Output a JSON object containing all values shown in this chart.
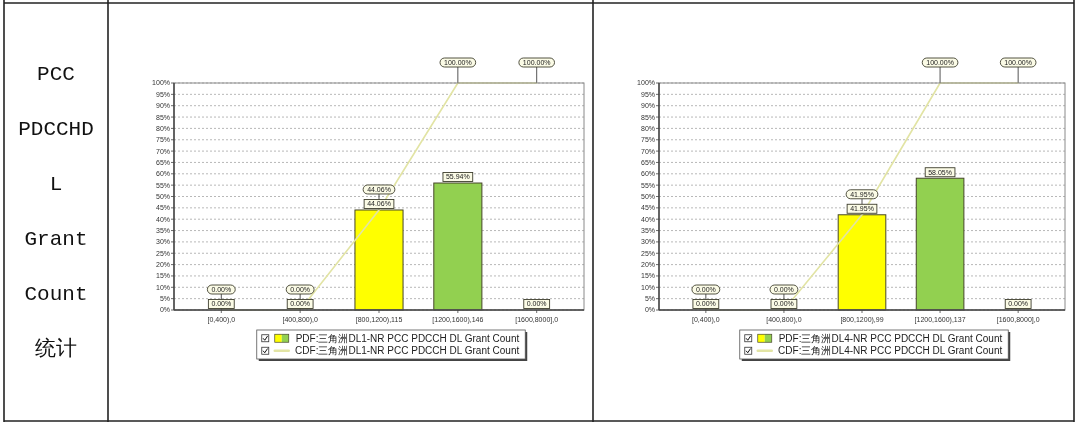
{
  "chart_data": [
    {
      "type": "other",
      "title": "PCC PDCCHDL Grant Count 统计"
    },
    {
      "type": "bar",
      "categories": [
        "[0,400),0",
        "[400,800),0",
        "[800,1200),115",
        "[1200,1600),146",
        "[1600,8000],0"
      ],
      "series": [
        {
          "name": "PDF:三角洲DL1-NR PCC PDCCH DL Grant Count",
          "type": "bar",
          "colors": [
            "#ffff00",
            "#ffff00",
            "#ffff00",
            "#92d050",
            "#92d050"
          ],
          "values": [
            0,
            0,
            44.06,
            55.94,
            0
          ],
          "value_labels": [
            "0.00%",
            "0.00%",
            "44.06%",
            "55.94%",
            "0.00%"
          ]
        },
        {
          "name": "CDF:三角洲DL1-NR PCC PDCCH DL Grant Count",
          "type": "line",
          "color": "#e2e4a4",
          "values": [
            0,
            0,
            44.06,
            100,
            100
          ],
          "value_labels": [
            "0.00%",
            "0.00%",
            "44.06%",
            "100.00%",
            "100.00%"
          ]
        }
      ],
      "ylim": [
        0,
        100
      ],
      "yticks": [
        {
          "value": 0,
          "label": "0%"
        },
        {
          "value": 5,
          "label": "5%"
        },
        {
          "value": 10,
          "label": "10%"
        },
        {
          "value": 15,
          "label": "15%"
        },
        {
          "value": 20,
          "label": "20%"
        },
        {
          "value": 25,
          "label": "25%"
        },
        {
          "value": 30,
          "label": "30%"
        },
        {
          "value": 35,
          "label": "35%"
        },
        {
          "value": 40,
          "label": "40%"
        },
        {
          "value": 45,
          "label": "45%"
        },
        {
          "value": 50,
          "label": "50%"
        },
        {
          "value": 55,
          "label": "55%"
        },
        {
          "value": 60,
          "label": "60%"
        },
        {
          "value": 65,
          "label": "65%"
        },
        {
          "value": 70,
          "label": "70%"
        },
        {
          "value": 75,
          "label": "75%"
        },
        {
          "value": 80,
          "label": "80%"
        },
        {
          "value": 85,
          "label": "85%"
        },
        {
          "value": 90,
          "label": "90%"
        },
        {
          "value": 95,
          "label": "95%"
        },
        {
          "value": 100,
          "label": "100%"
        }
      ],
      "grid": "y",
      "legend": "bottom",
      "line_style": "solid"
    },
    {
      "type": "bar",
      "categories": [
        "[0,400),0",
        "[400,800),0",
        "[800,1200),99",
        "[1200,1600),137",
        "[1600,8000],0"
      ],
      "series": [
        {
          "name": "PDF:三角洲DL4-NR PCC PDCCH DL Grant Count",
          "type": "bar",
          "colors": [
            "#ffff00",
            "#ffff00",
            "#ffff00",
            "#92d050",
            "#92d050"
          ],
          "values": [
            0,
            0,
            41.95,
            58.05,
            0
          ],
          "value_labels": [
            "0.00%",
            "0.00%",
            "41.95%",
            "58.05%",
            "0.00%"
          ]
        },
        {
          "name": "CDF:三角洲DL4-NR PCC PDCCH DL Grant Count",
          "type": "line",
          "color": "#e2e4a4",
          "values": [
            0,
            0,
            41.95,
            100,
            100
          ],
          "value_labels": [
            "0.00%",
            "0.00%",
            "41.95%",
            "100.00%",
            "100.00%"
          ]
        }
      ],
      "ylim": [
        0,
        100
      ],
      "yticks": [
        {
          "value": 0,
          "label": "0%"
        },
        {
          "value": 5,
          "label": "5%"
        },
        {
          "value": 10,
          "label": "10%"
        },
        {
          "value": 15,
          "label": "15%"
        },
        {
          "value": 20,
          "label": "20%"
        },
        {
          "value": 25,
          "label": "25%"
        },
        {
          "value": 30,
          "label": "30%"
        },
        {
          "value": 35,
          "label": "35%"
        },
        {
          "value": 40,
          "label": "40%"
        },
        {
          "value": 45,
          "label": "45%"
        },
        {
          "value": 50,
          "label": "50%"
        },
        {
          "value": 55,
          "label": "55%"
        },
        {
          "value": 60,
          "label": "60%"
        },
        {
          "value": 65,
          "label": "65%"
        },
        {
          "value": 70,
          "label": "70%"
        },
        {
          "value": 75,
          "label": "75%"
        },
        {
          "value": 80,
          "label": "80%"
        },
        {
          "value": 85,
          "label": "85%"
        },
        {
          "value": 90,
          "label": "90%"
        },
        {
          "value": 95,
          "label": "95%"
        },
        {
          "value": 100,
          "label": "100%"
        }
      ],
      "grid": "y",
      "legend": "bottom",
      "line_style": "solid"
    }
  ]
}
